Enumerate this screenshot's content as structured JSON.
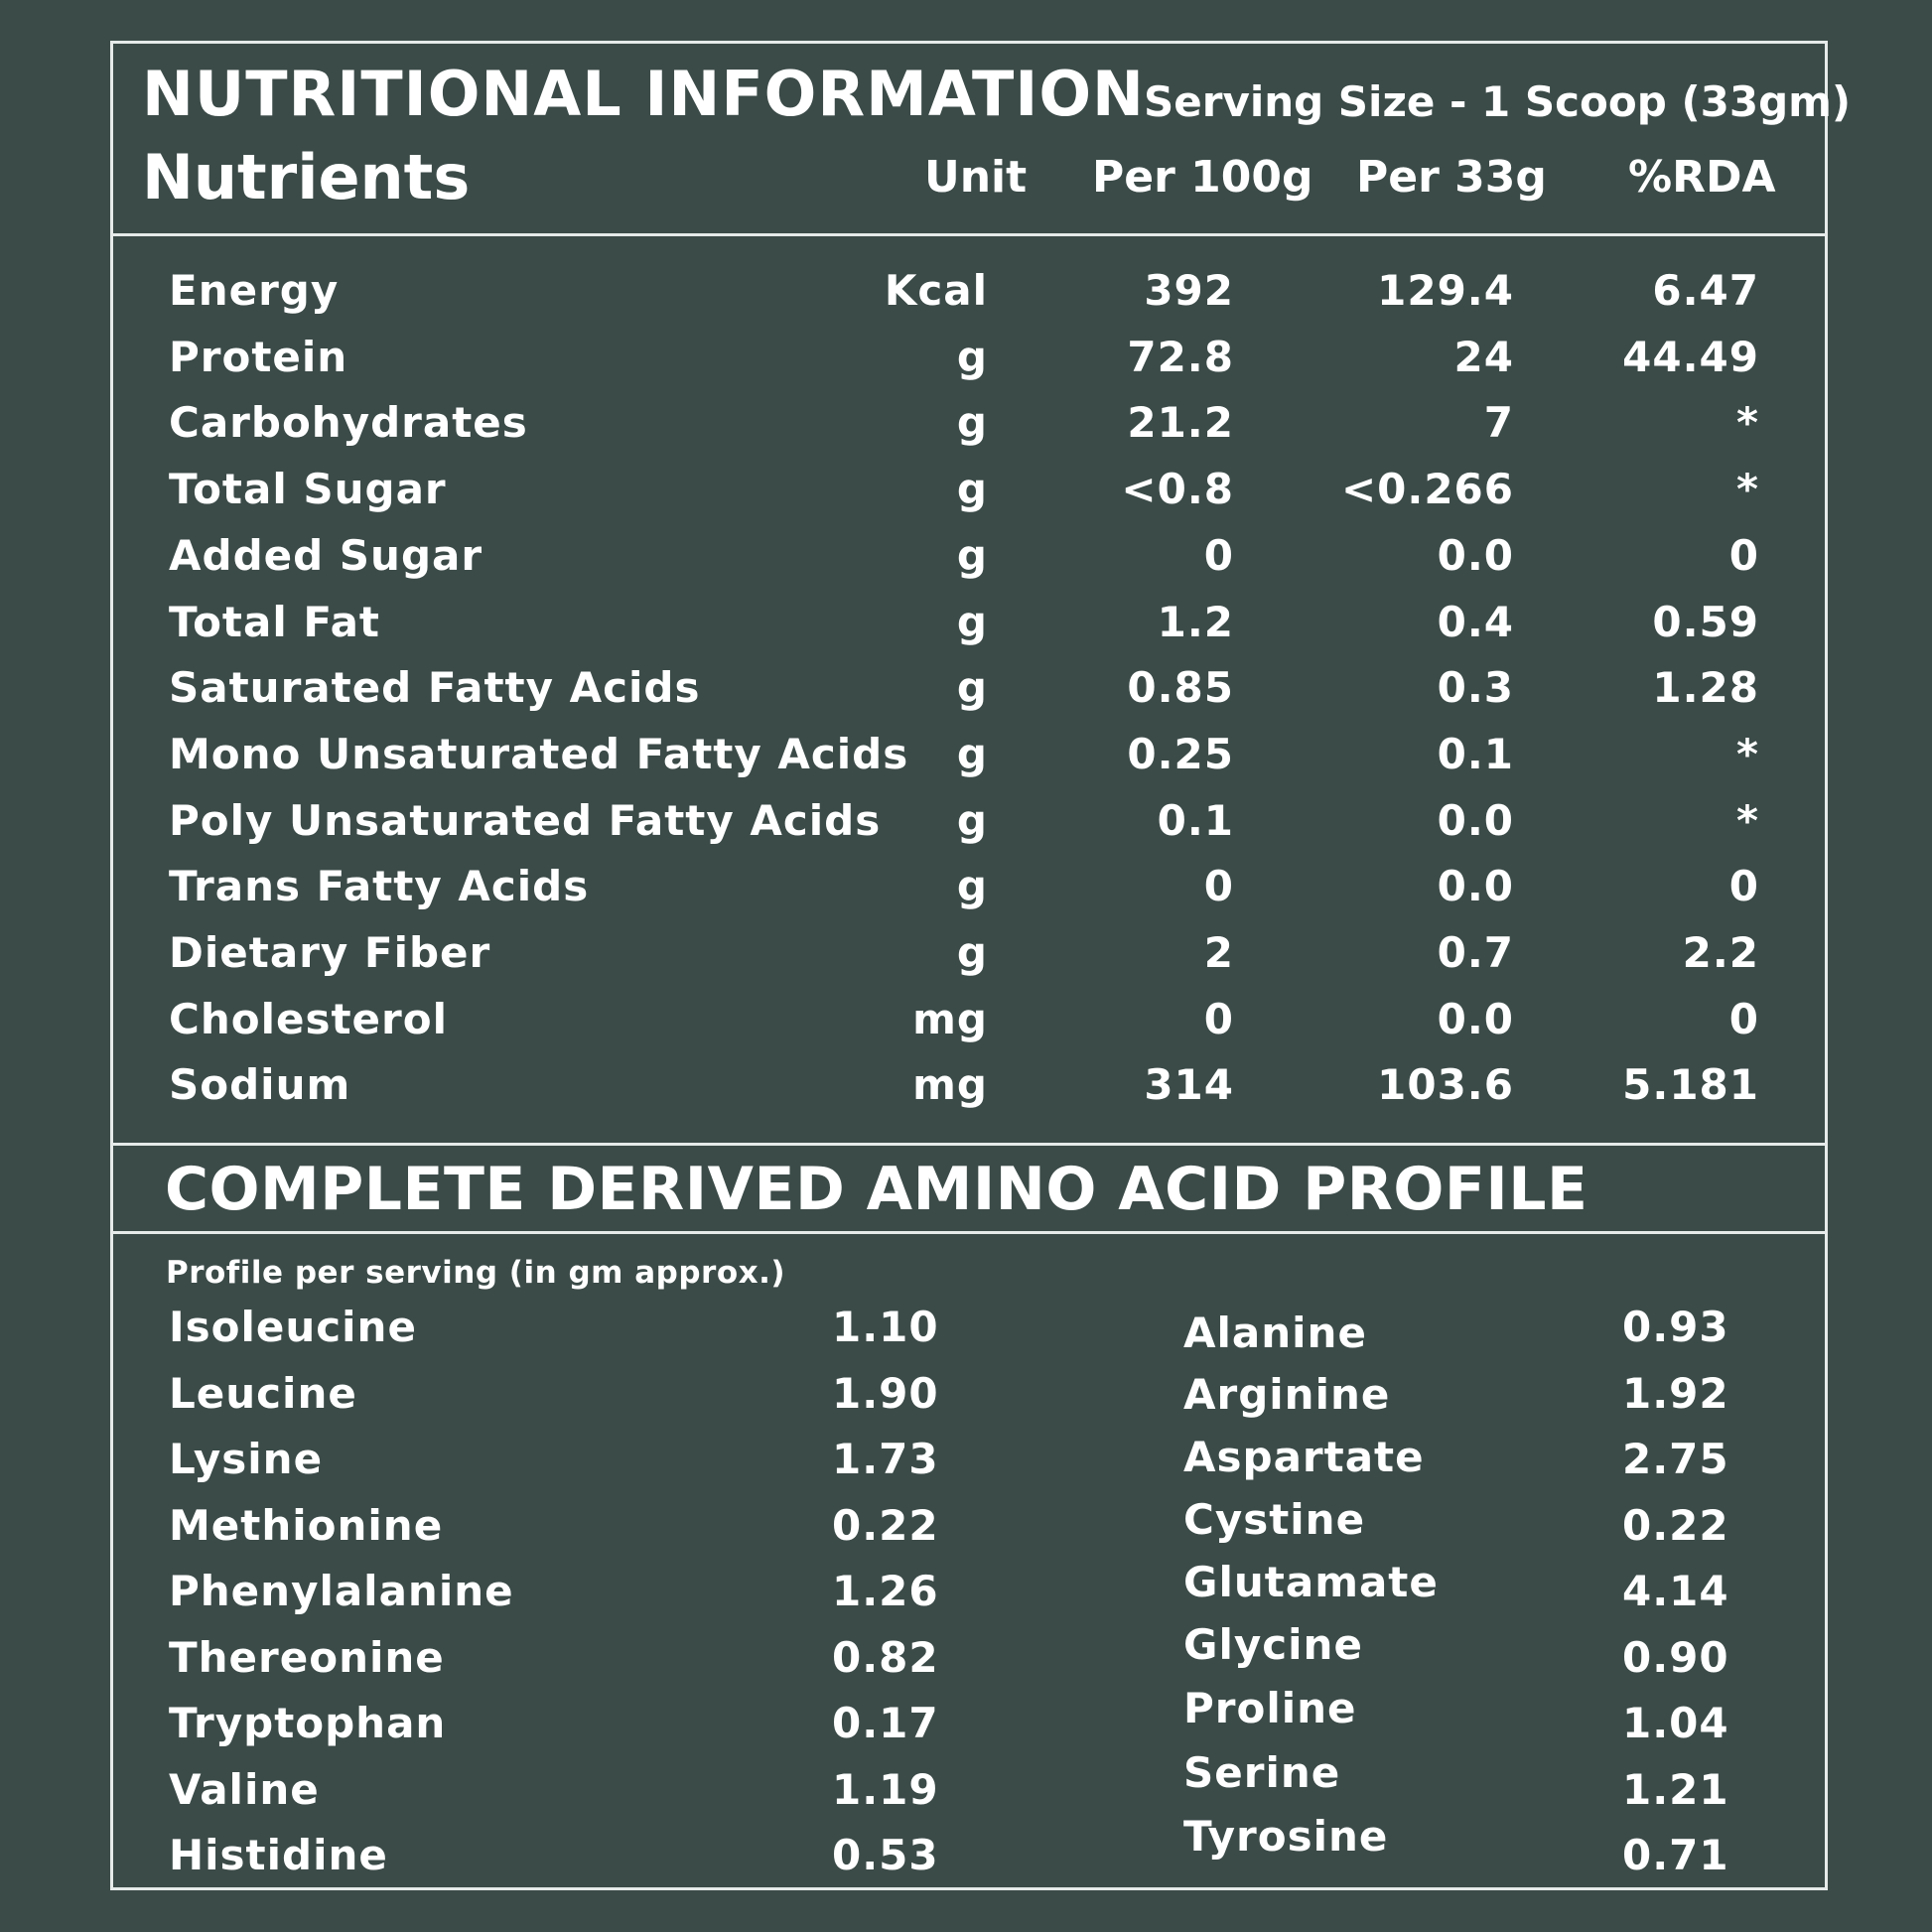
{
  "nutrition": {
    "title": "NUTRITIONAL INFORMATION",
    "serving_size": "Serving Size - 1 Scoop (33gm)",
    "columns": {
      "nutrients": "Nutrients",
      "unit": "Unit",
      "per100": "Per 100g",
      "per33": "Per 33g",
      "rda": "%RDA"
    },
    "rows": [
      {
        "name": "Energy",
        "unit": "Kcal",
        "per100": "392",
        "per33": "129.4",
        "rda": "6.47"
      },
      {
        "name": "Protein",
        "unit": "g",
        "per100": "72.8",
        "per33": "24",
        "rda": "44.49"
      },
      {
        "name": "Carbohydrates",
        "unit": "g",
        "per100": "21.2",
        "per33": "7",
        "rda": "*"
      },
      {
        "name": "Total Sugar",
        "unit": "g",
        "per100": "<0.8",
        "per33": "<0.266",
        "rda": "*"
      },
      {
        "name": "Added Sugar",
        "unit": "g",
        "per100": "0",
        "per33": "0.0",
        "rda": "0"
      },
      {
        "name": "Total Fat",
        "unit": "g",
        "per100": "1.2",
        "per33": "0.4",
        "rda": "0.59"
      },
      {
        "name": "Saturated Fatty Acids",
        "unit": "g",
        "per100": "0.85",
        "per33": "0.3",
        "rda": "1.28"
      },
      {
        "name": "Mono Unsaturated Fatty Acids",
        "unit": "g",
        "per100": "0.25",
        "per33": "0.1",
        "rda": "*"
      },
      {
        "name": "Poly Unsaturated Fatty Acids",
        "unit": "g",
        "per100": "0.1",
        "per33": "0.0",
        "rda": "*"
      },
      {
        "name": "Trans Fatty Acids",
        "unit": "g",
        "per100": "0",
        "per33": "0.0",
        "rda": "0"
      },
      {
        "name": "Dietary Fiber",
        "unit": "g",
        "per100": "2",
        "per33": "0.7",
        "rda": "2.2"
      },
      {
        "name": "Cholesterol",
        "unit": "mg",
        "per100": "0",
        "per33": "0.0",
        "rda": "0"
      },
      {
        "name": "Sodium",
        "unit": "mg",
        "per100": "314",
        "per33": "103.6",
        "rda": "5.181"
      }
    ]
  },
  "amino": {
    "title": "COMPLETE DERIVED AMINO ACID PROFILE",
    "subtitle": "Profile per serving (in gm approx.)",
    "left": [
      {
        "name": "Isoleucine",
        "value": "1.10"
      },
      {
        "name": "Leucine",
        "value": "1.90"
      },
      {
        "name": "Lysine",
        "value": "1.73"
      },
      {
        "name": "Methionine",
        "value": "0.22"
      },
      {
        "name": "Phenylalanine",
        "value": "1.26"
      },
      {
        "name": "Thereonine",
        "value": "0.82"
      },
      {
        "name": "Tryptophan",
        "value": "0.17"
      },
      {
        "name": "Valine",
        "value": "1.19"
      },
      {
        "name": "Histidine",
        "value": "0.53"
      }
    ],
    "right": [
      {
        "name": "Alanine",
        "value": "0.93"
      },
      {
        "name": "Arginine",
        "value": "1.92"
      },
      {
        "name": "Aspartate",
        "value": "2.75"
      },
      {
        "name": "Cystine",
        "value": "0.22"
      },
      {
        "name": "Glutamate",
        "value": "4.14"
      },
      {
        "name": "Glycine",
        "value": "0.90"
      },
      {
        "name": "Proline",
        "value": "1.04"
      },
      {
        "name": "Serine",
        "value": "1.21"
      },
      {
        "name": "Tyrosine",
        "value": "0.71"
      }
    ]
  }
}
